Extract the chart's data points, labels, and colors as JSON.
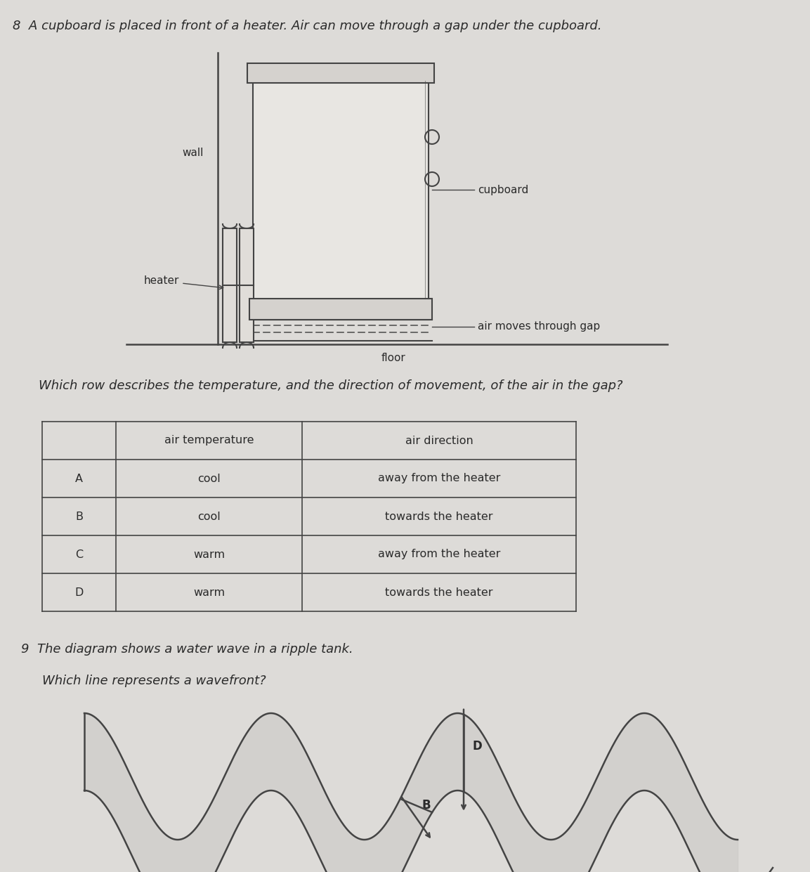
{
  "bg_color": "#dddbd8",
  "text_color": "#2a2a2a",
  "q8_text": "8  A cupboard is placed in front of a heater. Air can move through a gap under the cupboard.",
  "wall_label": "wall",
  "heater_label": "heater",
  "cupboard_label": "cupboard",
  "air_gap_label": "air moves through gap",
  "floor_label": "floor",
  "question_text": "Which row describes the temperature, and the direction of movement, of the air in the gap?",
  "col2_header": "air temperature",
  "col3_header": "air direction",
  "rows": [
    [
      "A",
      "cool",
      "away from the heater"
    ],
    [
      "B",
      "cool",
      "towards the heater"
    ],
    [
      "C",
      "warm",
      "away from the heater"
    ],
    [
      "D",
      "warm",
      "towards the heater"
    ]
  ],
  "q9_text": "9  The diagram shows a water wave in a ripple tank.",
  "q9_sub": "Which line represents a wavefront?",
  "line_color": "#444444",
  "fill_color": "#cccccc"
}
